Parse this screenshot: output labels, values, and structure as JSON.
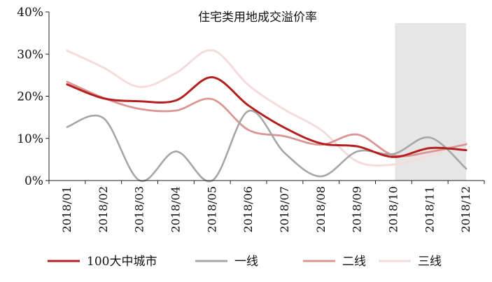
{
  "chart_data": {
    "type": "line",
    "title": "住宅类用地成交溢价率",
    "xlabel": "",
    "ylabel": "",
    "categories": [
      "2018/01",
      "2018/02",
      "2018/03",
      "2018/04",
      "2018/05",
      "2018/06",
      "2018/07",
      "2018/08",
      "2018/09",
      "2018/10",
      "2018/11",
      "2018/12"
    ],
    "ylim": [
      0,
      40
    ],
    "yticks": [
      "0%",
      "10%",
      "20%",
      "30%",
      "40%"
    ],
    "grid": false,
    "legend": "bottom",
    "shaded_region": [
      "2018/10",
      "2018/12"
    ],
    "series": [
      {
        "name": "100大中城市",
        "color": "#b41f1f",
        "width": 3,
        "values": [
          22.8,
          19.5,
          18.8,
          19.0,
          24.5,
          17.8,
          12.5,
          8.8,
          8.1,
          5.6,
          7.7,
          7.2
        ]
      },
      {
        "name": "一线",
        "color": "#a6a6a6",
        "width": 2.6,
        "values": [
          12.7,
          14.8,
          0.0,
          6.9,
          0.0,
          16.5,
          6.5,
          1.0,
          6.9,
          6.3,
          10.2,
          2.8
        ]
      },
      {
        "name": "二线",
        "color": "#d99694",
        "width": 2.8,
        "values": [
          23.4,
          19.6,
          17.0,
          16.6,
          19.3,
          12.0,
          10.5,
          8.5,
          10.9,
          6.0,
          6.8,
          8.6
        ]
      },
      {
        "name": "三线",
        "color": "#f5dcdc",
        "width": 3,
        "values": [
          30.8,
          26.8,
          22.2,
          25.5,
          30.9,
          22.6,
          16.8,
          12.0,
          4.5,
          3.8,
          6.0,
          8.9
        ]
      }
    ]
  }
}
